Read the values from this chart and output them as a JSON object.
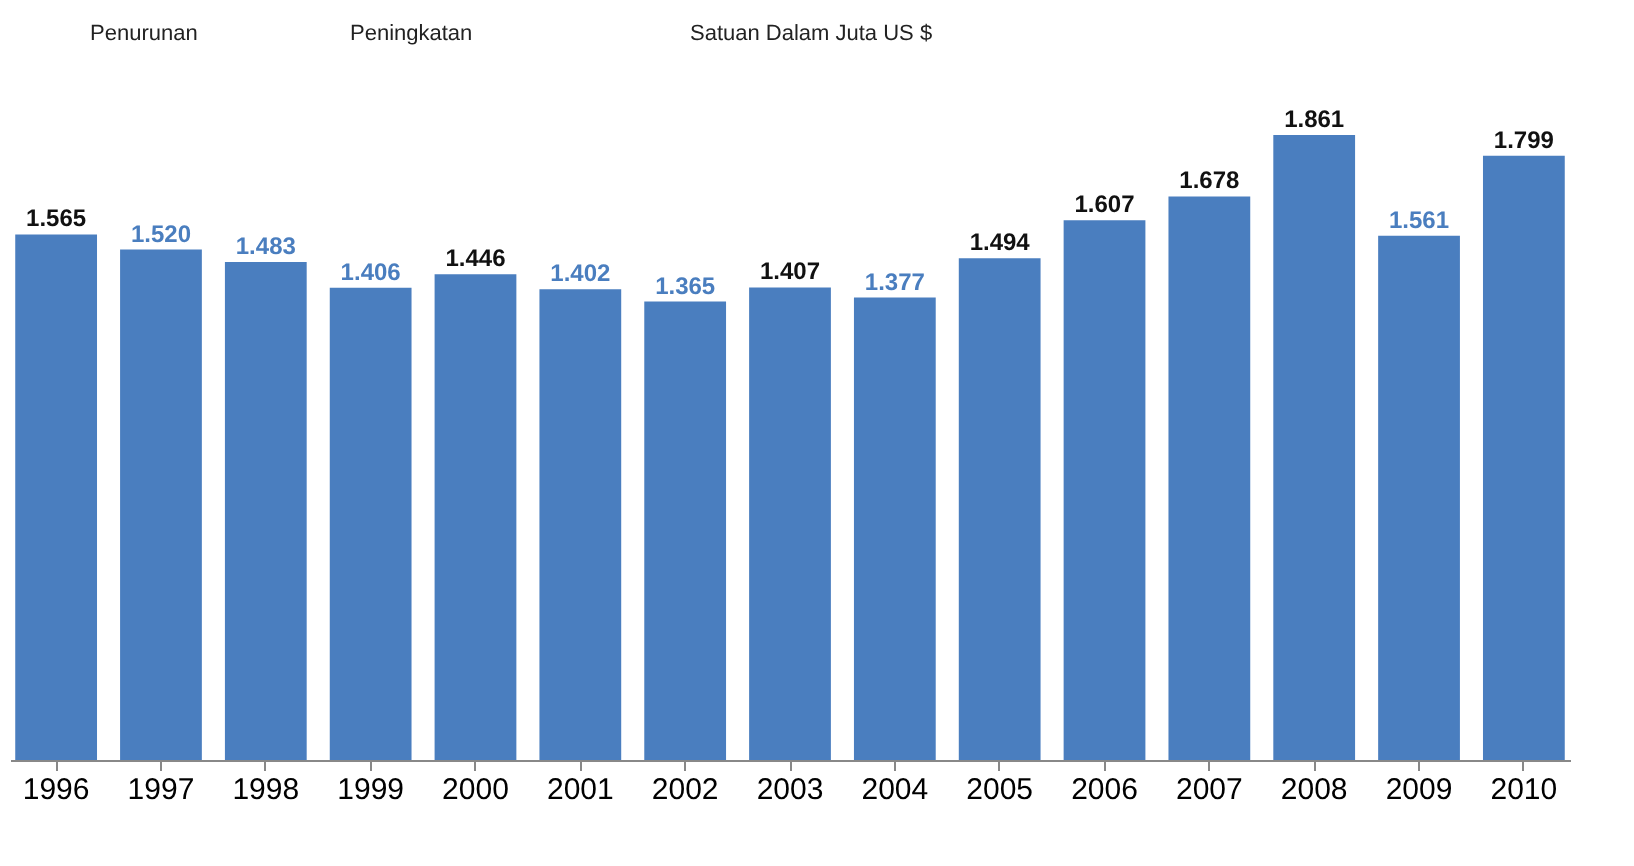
{
  "chart_data": {
    "type": "bar",
    "categories": [
      "1996",
      "1997",
      "1998",
      "1999",
      "2000",
      "2001",
      "2002",
      "2003",
      "2004",
      "2005",
      "2006",
      "2007",
      "2008",
      "2009",
      "2010"
    ],
    "values": [
      1565,
      1520,
      1483,
      1406,
      1446,
      1402,
      1365,
      1407,
      1377,
      1494,
      1607,
      1678,
      1861,
      1561,
      1799
    ],
    "value_labels": [
      "1.565",
      "1.520",
      "1.483",
      "1.406",
      "1.446",
      "1.402",
      "1.365",
      "1.407",
      "1.377",
      "1.494",
      "1.607",
      "1.678",
      "1.861",
      "1.561",
      "1.799"
    ],
    "color": "#4a7ebf",
    "annotations": [
      "Penurunan",
      "Peningkatan",
      "Satuan Dalam Juta US $"
    ]
  }
}
